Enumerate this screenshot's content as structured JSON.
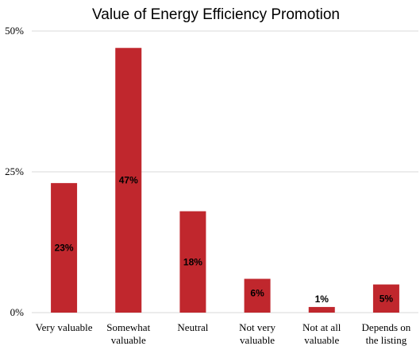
{
  "chart_data": {
    "type": "bar",
    "title": "Value of Energy Efficiency Promotion",
    "categories": [
      [
        "Very valuable"
      ],
      [
        "Somewhat",
        "valuable"
      ],
      [
        "Neutral"
      ],
      [
        "Not very",
        "valuable"
      ],
      [
        "Not at all",
        "valuable"
      ],
      [
        "Depends on",
        "the listing"
      ]
    ],
    "values": [
      23,
      47,
      18,
      6,
      1,
      5
    ],
    "data_labels": [
      "23%",
      "47%",
      "18%",
      "6%",
      "1%",
      "5%"
    ],
    "yticks": [
      {
        "value": 0,
        "label": "0%"
      },
      {
        "value": 25,
        "label": "25%"
      },
      {
        "value": 50,
        "label": "50%"
      }
    ],
    "ylim": [
      0,
      50
    ],
    "grid": true,
    "bar_color": "#c0272d"
  }
}
